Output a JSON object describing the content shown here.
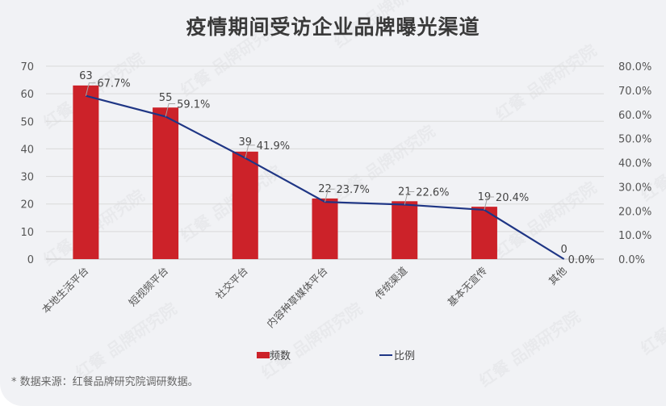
{
  "title": "疫情期间受访企业品牌曝光渠道",
  "legend": {
    "bar_label": "频数",
    "line_label": "比例"
  },
  "source": "* 数据来源：红餐品牌研究院调研数据。",
  "watermark": "红餐 品牌研究院",
  "colors": {
    "bar": "#cc2229",
    "line": "#1f3685",
    "background": "#f1f2f5",
    "grid": "#d9d9d9"
  },
  "chart_data": {
    "type": "bar+line",
    "title": "疫情期间受访企业品牌曝光渠道",
    "categories": [
      "本地生活平台",
      "短视频平台",
      "社交平台",
      "内容种草媒体平台",
      "传统渠道",
      "基本无宣传",
      "其他"
    ],
    "series": [
      {
        "name": "频数",
        "type": "bar",
        "axis": "left",
        "values": [
          63,
          55,
          39,
          22,
          21,
          19,
          0
        ]
      },
      {
        "name": "比例",
        "type": "line",
        "axis": "right",
        "values": [
          67.7,
          59.1,
          41.9,
          23.7,
          22.6,
          20.4,
          0.0
        ],
        "labels": [
          "67.7%",
          "59.1%",
          "41.9%",
          "23.7%",
          "22.6%",
          "20.4%",
          "0.0%"
        ]
      }
    ],
    "left_axis": {
      "ticks": [
        "0",
        "10",
        "20",
        "30",
        "40",
        "50",
        "60",
        "70"
      ],
      "ylim": [
        0,
        70
      ]
    },
    "right_axis": {
      "ticks": [
        "0.0%",
        "10.0%",
        "20.0%",
        "30.0%",
        "40.0%",
        "50.0%",
        "60.0%",
        "70.0%",
        "80.0%"
      ],
      "ylim": [
        0,
        80
      ]
    },
    "grid": true,
    "legend_position": "bottom"
  }
}
